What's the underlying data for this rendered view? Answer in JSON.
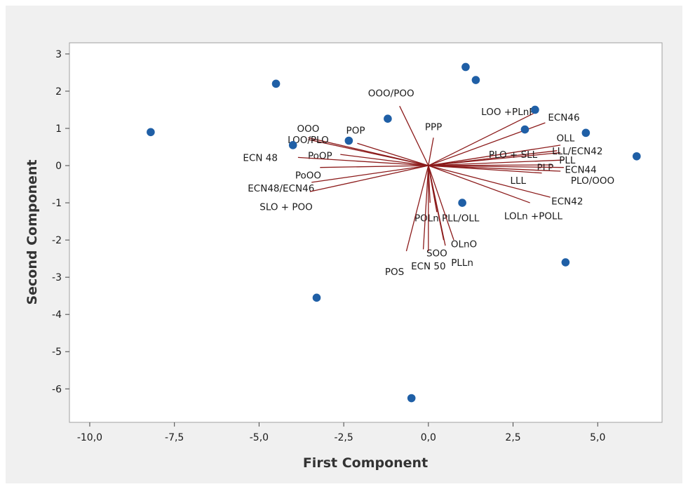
{
  "chart_data": {
    "type": "scatter",
    "subtype": "biplot",
    "title": "",
    "xlabel": "First Component",
    "ylabel": "Second Component",
    "xlim": [
      -10.6,
      6.9
    ],
    "ylim": [
      -6.9,
      3.3
    ],
    "x_ticks": [
      -10.0,
      -7.5,
      -5.0,
      -2.5,
      0.0,
      2.5,
      5.0
    ],
    "x_tick_labels": [
      "-10,0",
      "-7,5",
      "-5,0",
      "-2,5",
      "0,0",
      "2,5",
      "5,0"
    ],
    "y_ticks": [
      3,
      2,
      1,
      0,
      -1,
      -2,
      -3,
      -4,
      -5,
      -6
    ],
    "y_tick_labels": [
      "3",
      "2",
      "1",
      "0",
      "-1",
      "-2",
      "-3",
      "-4",
      "-5",
      "-6"
    ],
    "grid": false,
    "colors": {
      "points": "#1f5fa6",
      "vectors": "#8b1a1a",
      "plot_bg": "#ffffff",
      "frame_bg": "#f0f0f0"
    },
    "points": [
      {
        "x": -8.2,
        "y": 0.9
      },
      {
        "x": -4.5,
        "y": 2.2
      },
      {
        "x": -4.0,
        "y": 0.55
      },
      {
        "x": -3.3,
        "y": -3.55
      },
      {
        "x": -2.35,
        "y": 0.67
      },
      {
        "x": -1.2,
        "y": 1.26
      },
      {
        "x": -0.5,
        "y": -6.25
      },
      {
        "x": 1.0,
        "y": -1.0
      },
      {
        "x": 1.1,
        "y": 2.65
      },
      {
        "x": 1.4,
        "y": 2.3
      },
      {
        "x": 2.85,
        "y": 0.97
      },
      {
        "x": 3.15,
        "y": 1.5
      },
      {
        "x": 4.05,
        "y": -2.6
      },
      {
        "x": 4.65,
        "y": 0.88
      },
      {
        "x": 6.15,
        "y": 0.25
      }
    ],
    "vectors": [
      {
        "label": "OOO/POO",
        "x": -0.85,
        "y": 1.6,
        "lx": -1.1,
        "ly": 1.95,
        "anchor": "middle"
      },
      {
        "label": "PPP",
        "x": 0.15,
        "y": 0.75,
        "lx": 0.15,
        "ly": 1.05,
        "anchor": "middle"
      },
      {
        "label": "OOO",
        "x": -3.55,
        "y": 0.75,
        "lx": -3.55,
        "ly": 1.0,
        "anchor": "middle"
      },
      {
        "label": "LOO/PLO",
        "x": -3.55,
        "y": 0.7,
        "lx": -3.55,
        "ly": 0.7,
        "anchor": "middle"
      },
      {
        "label": "POP",
        "x": -2.1,
        "y": 0.6,
        "lx": -2.15,
        "ly": 0.95,
        "anchor": "middle"
      },
      {
        "label": "PoOP",
        "x": -2.6,
        "y": 0.3,
        "lx": -3.2,
        "ly": 0.27,
        "anchor": "middle"
      },
      {
        "label": "ECN 48",
        "x": -3.85,
        "y": 0.22,
        "lx": -4.45,
        "ly": 0.22,
        "anchor": "end"
      },
      {
        "label": "PoOO",
        "x": -3.2,
        "y": -0.05,
        "lx": -3.55,
        "ly": -0.25,
        "anchor": "middle"
      },
      {
        "label": "ECN48/ECN46",
        "x": -3.45,
        "y": -0.45,
        "lx": -4.35,
        "ly": -0.6,
        "anchor": "middle"
      },
      {
        "label": "SLO + POO",
        "x": -3.5,
        "y": -0.7,
        "lx": -4.2,
        "ly": -1.1,
        "anchor": "middle"
      },
      {
        "label": "LOO +PLnP",
        "x": 3.1,
        "y": 1.4,
        "lx": 2.35,
        "ly": 1.45,
        "anchor": "middle"
      },
      {
        "label": "ECN46",
        "x": 3.45,
        "y": 1.15,
        "lx": 4.0,
        "ly": 1.3,
        "anchor": "middle"
      },
      {
        "label": "OLL",
        "x": 3.9,
        "y": 0.55,
        "lx": 4.05,
        "ly": 0.75,
        "anchor": "middle"
      },
      {
        "label": "PLO + SLL",
        "x": 3.8,
        "y": 0.4,
        "lx": 2.5,
        "ly": 0.3,
        "anchor": "middle"
      },
      {
        "label": "LLL/ECN42",
        "x": 3.9,
        "y": 0.35,
        "lx": 4.4,
        "ly": 0.4,
        "anchor": "middle"
      },
      {
        "label": "PLL",
        "x": 4.0,
        "y": 0.15,
        "lx": 4.1,
        "ly": 0.15,
        "anchor": "middle"
      },
      {
        "label": "PLP",
        "x": 3.65,
        "y": 0.02,
        "lx": 3.45,
        "ly": -0.05,
        "anchor": "middle"
      },
      {
        "label": "ECN44",
        "x": 4.0,
        "y": -0.05,
        "lx": 4.5,
        "ly": -0.1,
        "anchor": "middle"
      },
      {
        "label": "PLO/OOO",
        "x": 3.9,
        "y": -0.15,
        "lx": 4.85,
        "ly": -0.4,
        "anchor": "middle"
      },
      {
        "label": "LLL",
        "x": 3.35,
        "y": -0.2,
        "lx": 2.65,
        "ly": -0.4,
        "anchor": "middle"
      },
      {
        "label": "ECN42",
        "x": 3.6,
        "y": -0.85,
        "lx": 4.1,
        "ly": -0.95,
        "anchor": "middle"
      },
      {
        "label": "LOLn +POLL",
        "x": 3.0,
        "y": -1.0,
        "lx": 3.1,
        "ly": -1.35,
        "anchor": "middle"
      },
      {
        "label": "POLn",
        "x": 0.05,
        "y": -1.0,
        "lx": -0.05,
        "ly": -1.4,
        "anchor": "middle"
      },
      {
        "label": "PLL/OLL",
        "x": 0.25,
        "y": -1.25,
        "lx": 0.95,
        "ly": -1.4,
        "anchor": "middle"
      },
      {
        "label": "OLnO",
        "x": 0.75,
        "y": -2.0,
        "lx": 1.05,
        "ly": -2.1,
        "anchor": "middle"
      },
      {
        "label": "SOO",
        "x": 0.45,
        "y": -2.0,
        "lx": 0.25,
        "ly": -2.35,
        "anchor": "middle"
      },
      {
        "label": "PLLn",
        "x": 0.5,
        "y": -2.15,
        "lx": 1.0,
        "ly": -2.6,
        "anchor": "middle"
      },
      {
        "label": "ECN 50",
        "x": 0.0,
        "y": -2.3,
        "lx": 0.0,
        "ly": -2.7,
        "anchor": "middle"
      },
      {
        "label": "POS",
        "x": -0.65,
        "y": -2.3,
        "lx": -1.0,
        "ly": -2.85,
        "anchor": "middle"
      },
      {
        "label": "",
        "x": -0.15,
        "y": -2.25,
        "lx": 0,
        "ly": 0,
        "anchor": "middle"
      }
    ]
  }
}
